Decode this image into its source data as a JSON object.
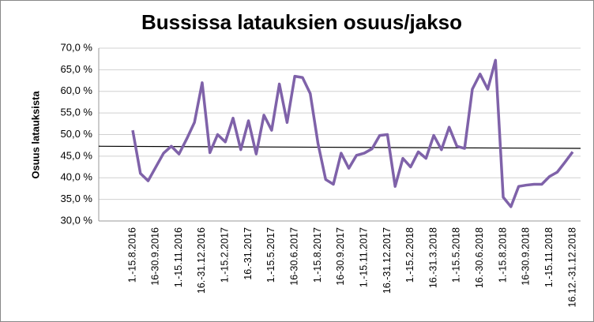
{
  "chart_data": {
    "type": "line",
    "title": "Bussissa latauksien osuus/jakso",
    "y_label": "Osuus latauksista",
    "categories": [
      "1.-15.8.2016",
      null,
      null,
      "16-30.9.2016",
      null,
      null,
      "1.-15.11.2016",
      null,
      null,
      "16.-31.12.2016",
      null,
      null,
      "1.-15.2.2017",
      null,
      null,
      "16.-31.2017",
      null,
      null,
      "1.-15.5.2017",
      null,
      null,
      "16-30.6.2017",
      null,
      null,
      "1.-15.8.2017",
      null,
      null,
      "16-30.9.2017",
      null,
      null,
      "1.-15.11.2017",
      null,
      null,
      "16.-31.12.2017",
      null,
      null,
      "1.-15.2.2018",
      null,
      null,
      "16.-31.3.2018",
      null,
      null,
      "1.-15.5.2018",
      null,
      null,
      "16.-30.6.2018",
      null,
      null,
      "1.-15.8.2018",
      null,
      null,
      "16-30.9.2018",
      null,
      null,
      "1.-15.11.2018",
      null,
      null,
      "16.12.-31.12.2018"
    ],
    "series": [
      {
        "name": "Osuus",
        "color": "#7f62a9",
        "values": [
          51,
          41,
          39.3,
          42.5,
          45.7,
          47.3,
          45.5,
          49,
          52.8,
          62,
          45.8,
          50,
          48.3,
          53.8,
          46.5,
          53.2,
          45.5,
          54.5,
          51,
          61.7,
          52.8,
          63.5,
          63.2,
          59.5,
          48,
          39.6,
          38.5,
          45.7,
          42.2,
          45.2,
          45.7,
          46.7,
          49.8,
          50,
          38,
          44.5,
          42.5,
          46,
          44.5,
          49.8,
          46.5,
          51.7,
          47.3,
          46.8,
          60.5,
          64,
          60.5,
          67.2,
          35.5,
          33.3,
          38,
          38.3,
          38.5,
          38.5,
          40.3,
          41.3,
          43.6,
          46
        ]
      }
    ],
    "trendline": {
      "color": "#000000",
      "values": [
        47.3,
        46.8
      ]
    },
    "ylim": [
      30,
      70
    ],
    "yticks": [
      {
        "value": 30,
        "label": "30,0 %"
      },
      {
        "value": 35,
        "label": "35,0 %"
      },
      {
        "value": 40,
        "label": "40,0 %"
      },
      {
        "value": 45,
        "label": "45,0 %"
      },
      {
        "value": 50,
        "label": "50,0 %"
      },
      {
        "value": 55,
        "label": "55,0 %"
      },
      {
        "value": 60,
        "label": "60,0 %"
      },
      {
        "value": 65,
        "label": "65,0 %"
      },
      {
        "value": 70,
        "label": "70,0 %"
      }
    ],
    "grid": true
  }
}
